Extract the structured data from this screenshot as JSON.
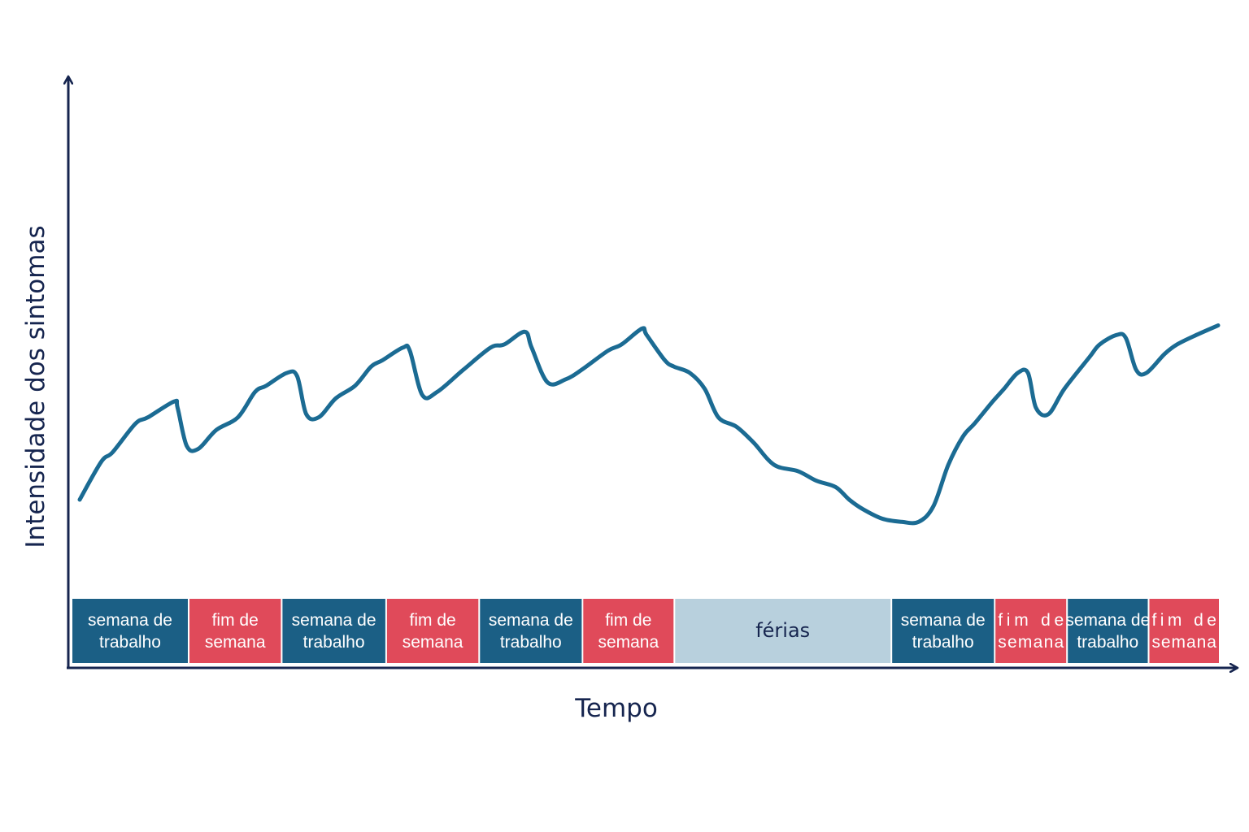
{
  "chart_data": {
    "type": "line",
    "title": "",
    "xlabel": "Tempo",
    "ylabel": "Intensidade dos sintomas",
    "xlim": [
      0,
      100
    ],
    "ylim": [
      0,
      100
    ],
    "colors": {
      "axis": "#16254f",
      "line": "#1b6b93",
      "work": "#1b5f85",
      "weekend": "#e04a5a",
      "vacation": "#b8d0dd"
    },
    "series": [
      {
        "values": [
          [
            0.0,
            20
          ],
          [
            1.9,
            32
          ],
          [
            2.9,
            35
          ],
          [
            4.9,
            44
          ],
          [
            6.0,
            46
          ],
          [
            8.3,
            51
          ],
          [
            8.6,
            49
          ],
          [
            9.4,
            37
          ],
          [
            10.4,
            36
          ],
          [
            12.0,
            42
          ],
          [
            13.9,
            46
          ],
          [
            15.4,
            54
          ],
          [
            16.4,
            56
          ],
          [
            18.2,
            60
          ],
          [
            19.1,
            59
          ],
          [
            19.9,
            47
          ],
          [
            21.0,
            46
          ],
          [
            22.5,
            52
          ],
          [
            24.2,
            56
          ],
          [
            25.6,
            62
          ],
          [
            26.6,
            64
          ],
          [
            28.4,
            68
          ],
          [
            29.0,
            67
          ],
          [
            30.1,
            53
          ],
          [
            31.4,
            54
          ],
          [
            33.7,
            61
          ],
          [
            36.1,
            68
          ],
          [
            37.3,
            69
          ],
          [
            39.1,
            73
          ],
          [
            39.7,
            68
          ],
          [
            41.1,
            57
          ],
          [
            42.7,
            58
          ],
          [
            44.1,
            61
          ],
          [
            46.4,
            67
          ],
          [
            47.6,
            69
          ],
          [
            49.4,
            74
          ],
          [
            49.8,
            72
          ],
          [
            51.4,
            64
          ],
          [
            52.2,
            62
          ],
          [
            53.6,
            60
          ],
          [
            54.9,
            55
          ],
          [
            56.1,
            46
          ],
          [
            57.7,
            43
          ],
          [
            59.2,
            38
          ],
          [
            61.0,
            31
          ],
          [
            63.1,
            29
          ],
          [
            64.7,
            26
          ],
          [
            66.4,
            24
          ],
          [
            67.6,
            20
          ],
          [
            68.8,
            17
          ],
          [
            70.5,
            14
          ],
          [
            72.2,
            13
          ],
          [
            73.7,
            13
          ],
          [
            75.0,
            18
          ],
          [
            76.3,
            31
          ],
          [
            77.6,
            40
          ],
          [
            78.6,
            44
          ],
          [
            80.2,
            51
          ],
          [
            81.2,
            55
          ],
          [
            82.4,
            60
          ],
          [
            83.3,
            60
          ],
          [
            84.0,
            49
          ],
          [
            85.1,
            47
          ],
          [
            86.5,
            55
          ],
          [
            88.7,
            65
          ],
          [
            89.6,
            69
          ],
          [
            91.1,
            72
          ],
          [
            91.9,
            71
          ],
          [
            92.8,
            61
          ],
          [
            93.7,
            60
          ],
          [
            95.3,
            66
          ],
          [
            96.4,
            69
          ],
          [
            98.1,
            72
          ],
          [
            100.0,
            75
          ]
        ]
      }
    ],
    "periods": [
      {
        "kind": "work",
        "line1": "semana de",
        "line2": "trabalho",
        "start": 0.0,
        "end": 10.2
      },
      {
        "kind": "weekend",
        "line1": "fim de",
        "line2": "semana",
        "start": 10.2,
        "end": 18.3
      },
      {
        "kind": "work",
        "line1": "semana de",
        "line2": "trabalho",
        "start": 18.3,
        "end": 27.4
      },
      {
        "kind": "weekend",
        "line1": "fim de",
        "line2": "semana",
        "start": 27.4,
        "end": 35.5
      },
      {
        "kind": "work",
        "line1": "semana de",
        "line2": "trabalho",
        "start": 35.5,
        "end": 44.5
      },
      {
        "kind": "weekend",
        "line1": "fim de",
        "line2": "semana",
        "start": 44.5,
        "end": 52.5
      },
      {
        "kind": "vacation",
        "line1": "férias",
        "line2": "",
        "start": 52.5,
        "end": 71.4
      },
      {
        "kind": "work",
        "line1": "semana de",
        "line2": "trabalho",
        "start": 71.4,
        "end": 80.4
      },
      {
        "kind": "weekend",
        "line1": "fim de",
        "line2": "semana",
        "start": 80.4,
        "end": 86.7
      },
      {
        "kind": "work",
        "line1": "semana de",
        "line2": "trabalho",
        "start": 86.7,
        "end": 93.8
      },
      {
        "kind": "weekend",
        "line1": "fim de",
        "line2": "semana",
        "start": 93.8,
        "end": 100.0
      }
    ],
    "grid": false,
    "legend": "none"
  }
}
